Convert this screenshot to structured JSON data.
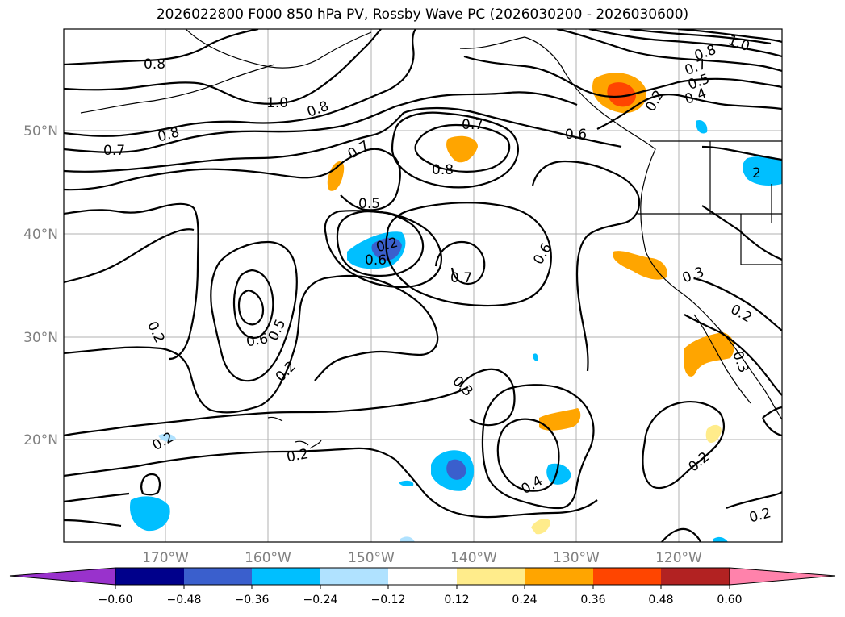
{
  "title": "2026022800 F000 850 hPa PV, Rossby Wave PC (2026030200 - 2026030600)",
  "map": {
    "lon_labels": [
      "170°W",
      "160°W",
      "150°W",
      "140°W",
      "130°W",
      "120°W"
    ],
    "lat_labels": [
      "50°N",
      "40°N",
      "30°N",
      "20°N"
    ]
  },
  "contour_labels": [
    "0.8",
    "1.0",
    "0.8",
    "0.8",
    "0.7",
    "0.7",
    "0.7",
    "0.8",
    "0.6",
    "0.8",
    "0.7",
    "0.5",
    "0.4",
    "1.0",
    "0.2",
    "0.5",
    "0.6",
    "0.7",
    "0.6",
    "0.5",
    "0.2",
    "0.2",
    "0.3",
    "0.2",
    "0.2",
    "0.4",
    "0.3",
    "0.2",
    "0.2",
    "0.3",
    "0.2",
    "2",
    "0.6",
    "0.2"
  ],
  "colorbar": {
    "ticks": [
      "−0.60",
      "−0.48",
      "−0.36",
      "−0.24",
      "−0.12",
      "0.12",
      "0.24",
      "0.36",
      "0.48",
      "0.60"
    ],
    "colors": [
      "#9932cc",
      "#00008b",
      "#3a5fcd",
      "#00bfff",
      "#b0e2ff",
      "#ffffff",
      "#ffec8b",
      "#ffa500",
      "#ff4500",
      "#b22222",
      "#ff82ab"
    ]
  }
}
